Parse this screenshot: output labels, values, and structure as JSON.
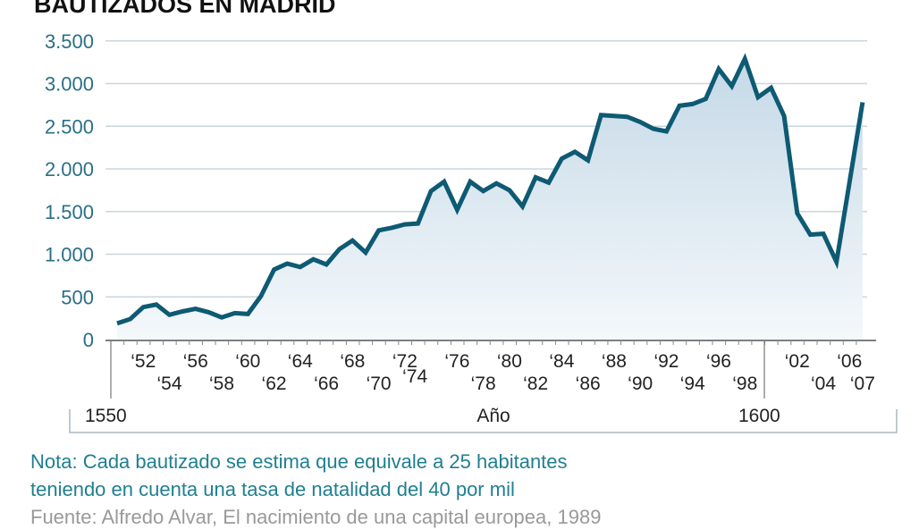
{
  "chart_data": {
    "type": "area",
    "title": "BAUTIZADOS EN MADRID",
    "xlabel": "Año",
    "ylabel": "",
    "ylim": [
      0,
      3500
    ],
    "xlim": [
      1550,
      1607
    ],
    "yticks": [
      0,
      500,
      1000,
      1500,
      2000,
      2500,
      3000,
      3500
    ],
    "ytick_labels": [
      "0",
      "500",
      "1.000",
      "1.500",
      "2.000",
      "2.500",
      "3.000",
      "3.500"
    ],
    "xtick_labels": [
      {
        "year": 1552,
        "label": "‘52",
        "row": 1
      },
      {
        "year": 1554,
        "label": "‘54",
        "row": 2
      },
      {
        "year": 1556,
        "label": "‘56",
        "row": 1
      },
      {
        "year": 1558,
        "label": "‘58",
        "row": 2
      },
      {
        "year": 1560,
        "label": "‘60",
        "row": 1
      },
      {
        "year": 1562,
        "label": "‘62",
        "row": 2
      },
      {
        "year": 1564,
        "label": "‘64",
        "row": 1
      },
      {
        "year": 1566,
        "label": "‘66",
        "row": 2
      },
      {
        "year": 1568,
        "label": "‘68",
        "row": 1
      },
      {
        "year": 1570,
        "label": "‘70",
        "row": 2
      },
      {
        "year": 1572,
        "label": "‘72",
        "row": 1
      },
      {
        "year": 1574,
        "label": "‘74",
        "row": 1.5
      },
      {
        "year": 1576,
        "label": "‘76",
        "row": 1
      },
      {
        "year": 1578,
        "label": "‘78",
        "row": 2
      },
      {
        "year": 1580,
        "label": "‘80",
        "row": 1
      },
      {
        "year": 1582,
        "label": "‘82",
        "row": 2
      },
      {
        "year": 1584,
        "label": "‘84",
        "row": 1
      },
      {
        "year": 1586,
        "label": "‘86",
        "row": 2
      },
      {
        "year": 1588,
        "label": "‘88",
        "row": 1
      },
      {
        "year": 1590,
        "label": "‘90",
        "row": 2
      },
      {
        "year": 1592,
        "label": "‘92",
        "row": 1
      },
      {
        "year": 1594,
        "label": "‘94",
        "row": 2
      },
      {
        "year": 1596,
        "label": "‘96",
        "row": 1
      },
      {
        "year": 1598,
        "label": "‘98",
        "row": 2
      },
      {
        "year": 1602,
        "label": "‘02",
        "row": 1
      },
      {
        "year": 1604,
        "label": "‘04",
        "row": 2
      },
      {
        "year": 1606,
        "label": "‘06",
        "row": 1
      },
      {
        "year": 1607,
        "label": "‘07",
        "row": 2
      }
    ],
    "century_labels": [
      {
        "year": 1550,
        "label": "1550"
      },
      {
        "year": 1600,
        "label": "1600"
      }
    ],
    "grid": true,
    "colors": {
      "line": "#0e5a73",
      "fill_top": "#c5d9e7",
      "fill_bottom": "#f4f8fb",
      "grid": "#c9d6de",
      "ytick": "#2a6f87"
    },
    "x": [
      1550,
      1551,
      1552,
      1553,
      1554,
      1555,
      1556,
      1557,
      1558,
      1559,
      1560,
      1561,
      1562,
      1563,
      1564,
      1565,
      1566,
      1567,
      1568,
      1569,
      1570,
      1571,
      1572,
      1573,
      1574,
      1575,
      1576,
      1577,
      1578,
      1579,
      1580,
      1581,
      1582,
      1583,
      1584,
      1585,
      1586,
      1587,
      1588,
      1589,
      1590,
      1591,
      1592,
      1593,
      1594,
      1595,
      1596,
      1597,
      1598,
      1599,
      1600,
      1601,
      1602,
      1603,
      1604,
      1605,
      1607
    ],
    "values": [
      190,
      240,
      380,
      410,
      290,
      330,
      360,
      320,
      260,
      310,
      300,
      510,
      820,
      890,
      850,
      940,
      880,
      1060,
      1160,
      1020,
      1280,
      1310,
      1350,
      1360,
      1740,
      1850,
      1520,
      1850,
      1740,
      1830,
      1750,
      1560,
      1900,
      1840,
      2120,
      2200,
      2100,
      2630,
      2620,
      2610,
      2550,
      2470,
      2440,
      2740,
      2760,
      2820,
      3170,
      2970,
      3290,
      2840,
      2950,
      2620,
      1480,
      1230,
      1240,
      910,
      2780
    ]
  },
  "note": {
    "line1": "Nota: Cada bautizado se estima que equivale a 25 habitantes",
    "line2": "teniendo en cuenta una tasa de natalidad del 40 por mil"
  },
  "source": "Fuente: Alfredo Alvar, El nacimiento de una capital europea, 1989"
}
